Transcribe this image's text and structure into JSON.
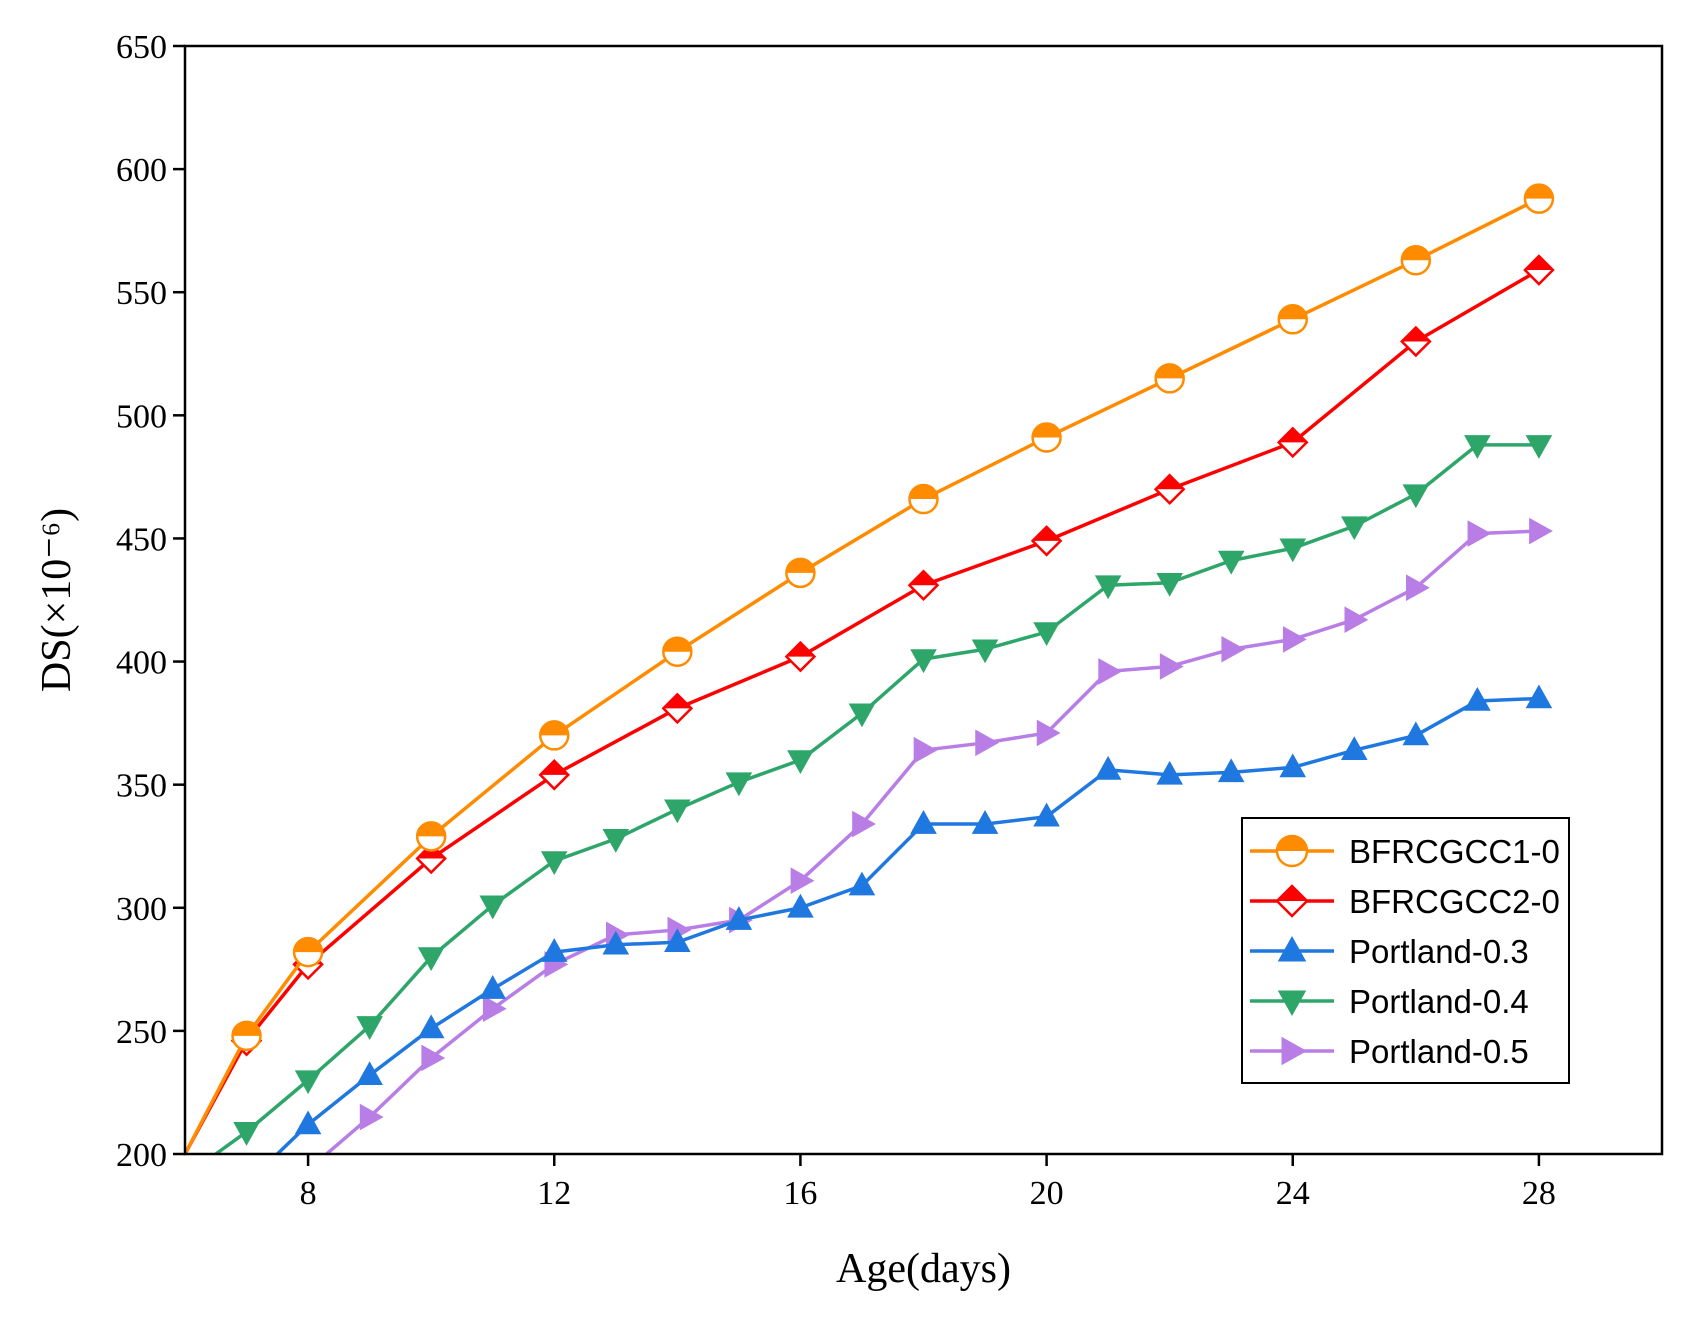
{
  "chart_data": {
    "type": "line",
    "title": "",
    "xlabel": "Age(days)",
    "ylabel": "DS(×10⁻⁶)",
    "xlim": [
      6,
      30
    ],
    "ylim": [
      200,
      650
    ],
    "xticks": [
      8,
      12,
      16,
      20,
      24,
      28
    ],
    "yticks": [
      200,
      250,
      300,
      350,
      400,
      450,
      500,
      550,
      600,
      650
    ],
    "grid": false,
    "legend_position": "lower-right",
    "series": [
      {
        "name": "BFRCGCC1-0",
        "color": "#ff8c00",
        "marker": "circle-half",
        "points": [
          [
            6,
            200
          ],
          [
            7,
            248
          ],
          [
            8,
            282
          ],
          [
            10,
            329
          ],
          [
            12,
            370
          ],
          [
            14,
            404
          ],
          [
            16,
            436
          ],
          [
            18,
            466
          ],
          [
            20,
            491
          ],
          [
            22,
            515
          ],
          [
            24,
            539
          ],
          [
            26,
            563
          ],
          [
            28,
            588
          ]
        ]
      },
      {
        "name": "BFRCGCC2-0",
        "color": "#ff0000",
        "marker": "diamond-half",
        "points": [
          [
            6,
            200
          ],
          [
            7,
            246
          ],
          [
            8,
            277
          ],
          [
            10,
            320
          ],
          [
            12,
            354
          ],
          [
            14,
            381
          ],
          [
            16,
            402
          ],
          [
            18,
            431
          ],
          [
            20,
            449
          ],
          [
            22,
            470
          ],
          [
            24,
            489
          ],
          [
            26,
            530
          ],
          [
            28,
            559
          ]
        ]
      },
      {
        "name": "Portland-0.3",
        "color": "#1f77e0",
        "marker": "triangle-up",
        "points": [
          [
            7.5,
            200
          ],
          [
            8,
            212
          ],
          [
            9,
            232
          ],
          [
            10,
            251
          ],
          [
            11,
            267
          ],
          [
            12,
            282
          ],
          [
            13,
            285
          ],
          [
            14,
            286
          ],
          [
            15,
            295
          ],
          [
            16,
            300
          ],
          [
            17,
            309
          ],
          [
            18,
            334
          ],
          [
            19,
            334
          ],
          [
            20,
            337
          ],
          [
            21,
            356
          ],
          [
            22,
            354
          ],
          [
            23,
            355
          ],
          [
            24,
            357
          ],
          [
            25,
            364
          ],
          [
            26,
            370
          ],
          [
            27,
            384
          ],
          [
            28,
            385
          ]
        ]
      },
      {
        "name": "Portland-0.4",
        "color": "#2ea66a",
        "marker": "triangle-down",
        "points": [
          [
            6.5,
            200
          ],
          [
            7,
            209
          ],
          [
            8,
            230
          ],
          [
            9,
            252
          ],
          [
            10,
            280
          ],
          [
            11,
            301
          ],
          [
            12,
            319
          ],
          [
            13,
            328
          ],
          [
            14,
            340
          ],
          [
            15,
            351
          ],
          [
            16,
            360
          ],
          [
            17,
            379
          ],
          [
            18,
            401
          ],
          [
            19,
            405
          ],
          [
            20,
            412
          ],
          [
            21,
            431
          ],
          [
            22,
            432
          ],
          [
            23,
            441
          ],
          [
            24,
            446
          ],
          [
            25,
            455
          ],
          [
            26,
            468
          ],
          [
            27,
            488
          ],
          [
            28,
            488
          ]
        ]
      },
      {
        "name": "Portland-0.5",
        "color": "#b87ee6",
        "marker": "triangle-right",
        "points": [
          [
            8.3,
            200
          ],
          [
            9,
            215
          ],
          [
            10,
            239
          ],
          [
            11,
            259
          ],
          [
            12,
            277
          ],
          [
            13,
            289
          ],
          [
            14,
            291
          ],
          [
            15,
            295
          ],
          [
            16,
            311
          ],
          [
            17,
            334
          ],
          [
            18,
            364
          ],
          [
            19,
            367
          ],
          [
            20,
            371
          ],
          [
            21,
            396
          ],
          [
            22,
            398
          ],
          [
            23,
            405
          ],
          [
            24,
            409
          ],
          [
            25,
            417
          ],
          [
            26,
            430
          ],
          [
            27,
            452
          ],
          [
            28,
            453
          ]
        ]
      }
    ]
  }
}
